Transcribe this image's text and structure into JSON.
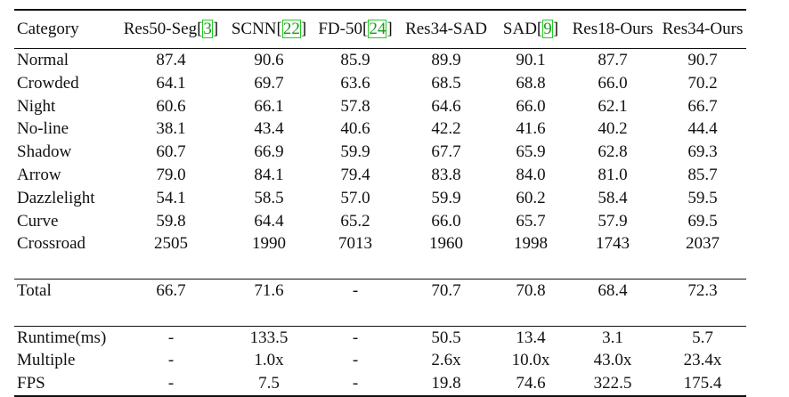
{
  "table": {
    "columns": [
      {
        "name": "Category",
        "cite": ""
      },
      {
        "name": "Res50-Seg",
        "cite": "3"
      },
      {
        "name": "SCNN",
        "cite": "22"
      },
      {
        "name": "FD-50",
        "cite": "24"
      },
      {
        "name": "Res34-SAD",
        "cite": ""
      },
      {
        "name": "SAD",
        "cite": "9"
      },
      {
        "name": "Res18-Ours",
        "cite": ""
      },
      {
        "name": "Res34-Ours",
        "cite": ""
      }
    ],
    "category_rows": [
      {
        "label": "Normal",
        "values": [
          "87.4",
          "90.6",
          "85.9",
          "89.9",
          "90.1",
          "87.7",
          "90.7"
        ],
        "bold": [
          6
        ]
      },
      {
        "label": "Crowded",
        "values": [
          "64.1",
          "69.7",
          "63.6",
          "68.5",
          "68.8",
          "66.0",
          "70.2"
        ],
        "bold": [
          6
        ]
      },
      {
        "label": "Night",
        "values": [
          "60.6",
          "66.1",
          "57.8",
          "64.6",
          "66.0",
          "62.1",
          "66.7"
        ],
        "bold": [
          6
        ]
      },
      {
        "label": "No-line",
        "values": [
          "38.1",
          "43.4",
          "40.6",
          "42.2",
          "41.6",
          "40.2",
          "44.4"
        ],
        "bold": [
          6
        ]
      },
      {
        "label": "Shadow",
        "values": [
          "60.7",
          "66.9",
          "59.9",
          "67.7",
          "65.9",
          "62.8",
          "69.3"
        ],
        "bold": [
          6
        ]
      },
      {
        "label": "Arrow",
        "values": [
          "79.0",
          "84.1",
          "79.4",
          "83.8",
          "84.0",
          "81.0",
          "85.7"
        ],
        "bold": [
          6
        ]
      },
      {
        "label": "Dazzlelight",
        "values": [
          "54.1",
          "58.5",
          "57.0",
          "59.9",
          "60.2",
          "58.4",
          "59.5"
        ],
        "bold": [
          4
        ]
      },
      {
        "label": "Curve",
        "values": [
          "59.8",
          "64.4",
          "65.2",
          "66.0",
          "65.7",
          "57.9",
          "69.5"
        ],
        "bold": [
          6
        ]
      },
      {
        "label": "Crossroad",
        "values": [
          "2505",
          "1990",
          "7013",
          "1960",
          "1998",
          "1743",
          "2037"
        ],
        "bold": [
          5
        ]
      }
    ],
    "total_row": {
      "label": "Total",
      "values": [
        "66.7",
        "71.6",
        "-",
        "70.7",
        "70.8",
        "68.4",
        "72.3"
      ],
      "bold": [
        6
      ]
    },
    "speed_rows": [
      {
        "label": "Runtime(ms)",
        "values": [
          "-",
          "133.5",
          "-",
          "50.5",
          "13.4",
          "3.1",
          "5.7"
        ],
        "bold": []
      },
      {
        "label": "Multiple",
        "values": [
          "-",
          "1.0x",
          "-",
          "2.6x",
          "10.0x",
          "43.0x",
          "23.4x"
        ],
        "bold": []
      },
      {
        "label": "FPS",
        "values": [
          "-",
          "7.5",
          "-",
          "19.8",
          "74.6",
          "322.5",
          "175.4"
        ],
        "bold": []
      }
    ]
  }
}
